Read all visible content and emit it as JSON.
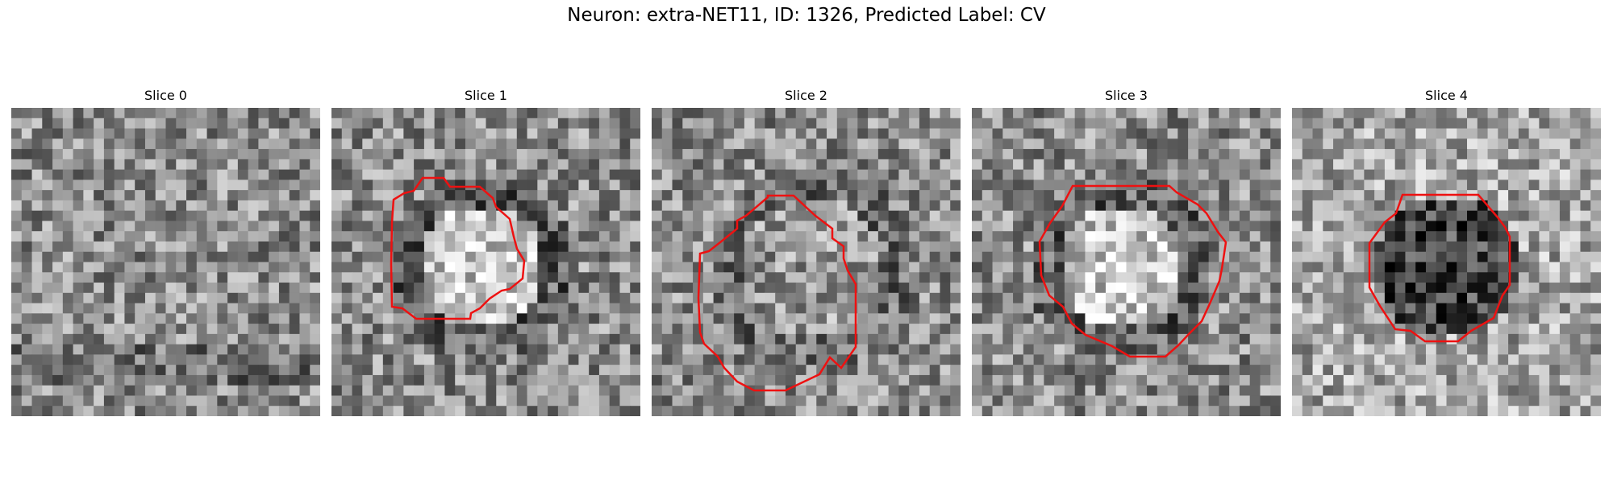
{
  "figure": {
    "title": "Neuron: extra-NET11, ID: 1326, Predicted Label: CV",
    "contour_color": "#ee1111",
    "colormap": "gray",
    "panels": [
      {
        "title": "Slice 0",
        "has_contour": false,
        "center_intensity": "n/a"
      },
      {
        "title": "Slice 1",
        "has_contour": true,
        "center_intensity": "bright"
      },
      {
        "title": "Slice 2",
        "has_contour": true,
        "center_intensity": "medium"
      },
      {
        "title": "Slice 3",
        "has_contour": true,
        "center_intensity": "bright"
      },
      {
        "title": "Slice 4",
        "has_contour": true,
        "center_intensity": "dark"
      }
    ]
  }
}
